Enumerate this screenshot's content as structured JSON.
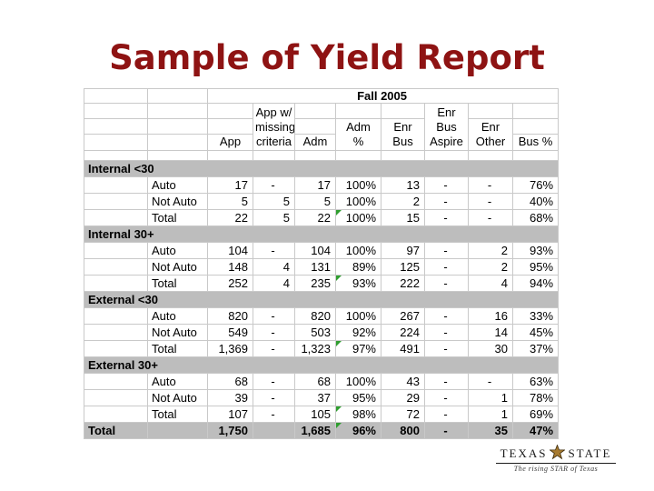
{
  "slide": {
    "title": "Sample of Yield Report"
  },
  "colors": {
    "title_red": "#8e1313",
    "band_gray": "#bdbdbd",
    "grid_gray": "#c9c9c9",
    "flag_green": "#2f9e2f",
    "star_gold": "#a87b2f",
    "star_outline": "#43300f",
    "logo_black": "#1c1c1c"
  },
  "table": {
    "period_header": "Fall 2005",
    "columns": {
      "app": "App",
      "app_missing": "App w/\nmissing\ncriteria",
      "adm": "Adm",
      "adm_pct": "Adm\n%",
      "enr_bus": "Enr\nBus",
      "enr_bus_aspire": "Enr\nBus\nAspire",
      "enr_other": "Enr\nOther",
      "bus_pct": "Bus %"
    },
    "sections": [
      {
        "label": "Internal <30",
        "rows": [
          {
            "label": "Auto",
            "values": [
              "17",
              "-",
              "17",
              "100%",
              "13",
              "-",
              "-",
              "76%"
            ]
          },
          {
            "label": "Not Auto",
            "values": [
              "5",
              "5",
              "5",
              "100%",
              "2",
              "-",
              "-",
              "40%"
            ]
          },
          {
            "label": "Total",
            "values": [
              "22",
              "5",
              "22",
              "100%",
              "15",
              "-",
              "-",
              "68%"
            ],
            "flag": true
          }
        ]
      },
      {
        "label": "Internal 30+",
        "rows": [
          {
            "label": "Auto",
            "values": [
              "104",
              "-",
              "104",
              "100%",
              "97",
              "-",
              "2",
              "93%"
            ]
          },
          {
            "label": "Not Auto",
            "values": [
              "148",
              "4",
              "131",
              "89%",
              "125",
              "-",
              "2",
              "95%"
            ]
          },
          {
            "label": "Total",
            "values": [
              "252",
              "4",
              "235",
              "93%",
              "222",
              "-",
              "4",
              "94%"
            ],
            "flag": true
          }
        ]
      },
      {
        "label": "External <30",
        "rows": [
          {
            "label": "Auto",
            "values": [
              "820",
              "-",
              "820",
              "100%",
              "267",
              "-",
              "16",
              "33%"
            ]
          },
          {
            "label": "Not Auto",
            "values": [
              "549",
              "-",
              "503",
              "92%",
              "224",
              "-",
              "14",
              "45%"
            ]
          },
          {
            "label": "Total",
            "values": [
              "1,369",
              "-",
              "1,323",
              "97%",
              "491",
              "-",
              "30",
              "37%"
            ],
            "flag": true
          }
        ]
      },
      {
        "label": "External 30+",
        "rows": [
          {
            "label": "Auto",
            "values": [
              "68",
              "-",
              "68",
              "100%",
              "43",
              "-",
              "-",
              "63%"
            ]
          },
          {
            "label": "Not Auto",
            "values": [
              "39",
              "-",
              "37",
              "95%",
              "29",
              "-",
              "1",
              "78%"
            ]
          },
          {
            "label": "Total",
            "values": [
              "107",
              "-",
              "105",
              "98%",
              "72",
              "-",
              "1",
              "69%"
            ],
            "flag": true
          }
        ]
      }
    ],
    "grand_total": {
      "label": "Total",
      "values": [
        "1,750",
        "",
        "1,685",
        "96%",
        "800",
        "-",
        "35",
        "47%"
      ],
      "flag": true
    }
  },
  "logo": {
    "word_left": "TEXAS",
    "word_right": "STATE",
    "tagline": "The rising STAR of Texas"
  }
}
